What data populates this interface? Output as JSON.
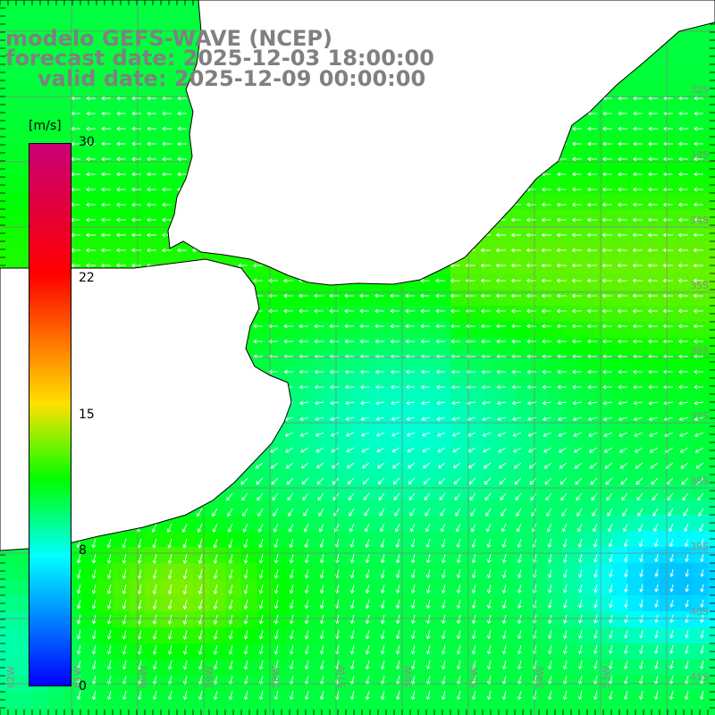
{
  "title": {
    "line1": "modelo GEFS-WAVE (NCEP)",
    "line2": "forecast date: 2025-12-03 18:00:00",
    "line3": "valid date: 2025-12-09 00:00:00"
  },
  "colorbar": {
    "unit": "[m/s]",
    "ticks": [
      "30",
      "22",
      "15",
      "8",
      "0"
    ],
    "tick_values": [
      30,
      22,
      15,
      8,
      0
    ],
    "range": [
      0,
      30
    ],
    "colors": [
      "#0000ff",
      "#0080ff",
      "#00ffff",
      "#00ff00",
      "#ffe000",
      "#ff7000",
      "#ff0000",
      "#c80078"
    ]
  },
  "map": {
    "lat_labels": [
      "32S",
      "33S",
      "34S",
      "35S",
      "36S",
      "37S",
      "38S",
      "39S",
      "40S",
      "41S"
    ],
    "lon_labels": [
      "62W",
      "61W",
      "60W",
      "59W",
      "58W",
      "57W",
      "56W",
      "55W",
      "54W",
      "53W"
    ],
    "land_color": "#ffffff",
    "coast_color": "#000000",
    "grid_color": "#808080",
    "arrow_color": "#ffffff"
  }
}
